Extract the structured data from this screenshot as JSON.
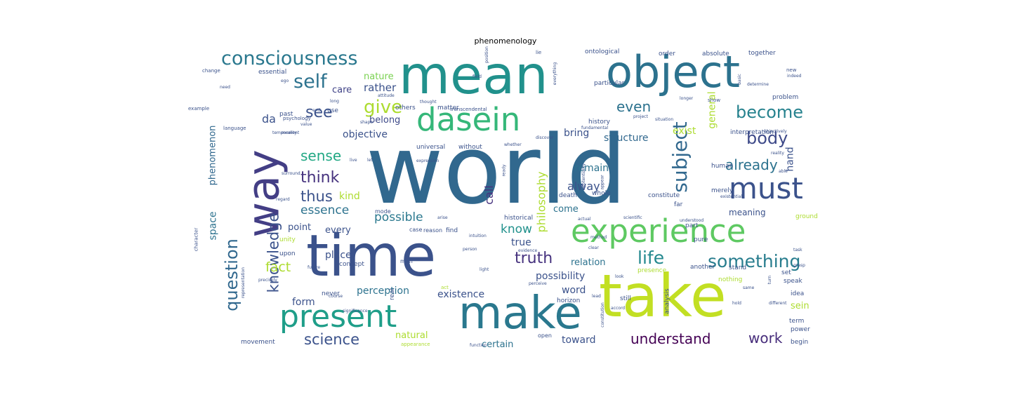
{
  "title": "phenomenology",
  "palette": [
    "#440154",
    "#472d7b",
    "#3b528b",
    "#2c728e",
    "#21918c",
    "#28ae80",
    "#5ec962",
    "#addc30",
    "#d5e21a"
  ],
  "words": [
    {
      "t": "world",
      "c": "#31688e"
    },
    {
      "t": "time",
      "c": "#3b528b"
    },
    {
      "t": "take",
      "c": "#c2df23"
    },
    {
      "t": "mean",
      "c": "#21918c"
    },
    {
      "t": "way",
      "c": "#433e85"
    },
    {
      "t": "object",
      "c": "#2c728e"
    },
    {
      "t": "make",
      "c": "#2a788e"
    },
    {
      "t": "present",
      "c": "#1f9e89"
    },
    {
      "t": "experience",
      "c": "#5ec962"
    },
    {
      "t": "dasein",
      "c": "#35b779"
    },
    {
      "t": "must",
      "c": "#3b528b"
    },
    {
      "t": "consciousness",
      "c": "#2a788e"
    },
    {
      "t": "give",
      "c": "#addc30"
    },
    {
      "t": "self",
      "c": "#2c728e"
    },
    {
      "t": "become",
      "c": "#26828e"
    },
    {
      "t": "subject",
      "c": "#31688e"
    },
    {
      "t": "body",
      "c": "#3e4a89"
    },
    {
      "t": "already",
      "c": "#2c728e"
    },
    {
      "t": "something",
      "c": "#287d8e"
    },
    {
      "t": "life",
      "c": "#23888e"
    },
    {
      "t": "understand",
      "c": "#440154"
    },
    {
      "t": "work",
      "c": "#472d7b"
    },
    {
      "t": "science",
      "c": "#3b528b"
    },
    {
      "t": "question",
      "c": "#31688e"
    },
    {
      "t": "knowledge",
      "c": "#3b528b"
    },
    {
      "t": "think",
      "c": "#46327e"
    },
    {
      "t": "thus",
      "c": "#3b528b"
    },
    {
      "t": "sense",
      "c": "#22a884"
    },
    {
      "t": "see",
      "c": "#3b528b"
    },
    {
      "t": "even",
      "c": "#2c728e"
    },
    {
      "t": "truth",
      "c": "#46327e"
    },
    {
      "t": "fact",
      "c": "#addc30"
    },
    {
      "t": "essence",
      "c": "#2c728e"
    },
    {
      "t": "possible",
      "c": "#2a788e"
    },
    {
      "t": "objective",
      "c": "#3b528b"
    },
    {
      "t": "rather",
      "c": "#3b528b"
    },
    {
      "t": "nature",
      "c": "#7ad151"
    },
    {
      "t": "care",
      "c": "#404387"
    },
    {
      "t": "belong",
      "c": "#3e4a89"
    },
    {
      "t": "da",
      "c": "#3b528b"
    },
    {
      "t": "philosophy",
      "c": "#addc30"
    },
    {
      "t": "structure",
      "c": "#31688e"
    },
    {
      "t": "exist",
      "c": "#addc30"
    },
    {
      "t": "general",
      "c": "#addc30"
    },
    {
      "t": "hand",
      "c": "#3b528b"
    },
    {
      "t": "remain",
      "c": "#2c728e"
    },
    {
      "t": "alway",
      "c": "#3b528b"
    },
    {
      "t": "bring",
      "c": "#3b528b"
    },
    {
      "t": "call",
      "c": "#46327e"
    },
    {
      "t": "kind",
      "c": "#addc30"
    },
    {
      "t": "know",
      "c": "#21918c"
    },
    {
      "t": "true",
      "c": "#3b528b"
    },
    {
      "t": "possibility",
      "c": "#3b528b"
    },
    {
      "t": "relation",
      "c": "#2c728e"
    },
    {
      "t": "word",
      "c": "#3b528b"
    },
    {
      "t": "existence",
      "c": "#3b528b"
    },
    {
      "t": "perception",
      "c": "#2c728e"
    },
    {
      "t": "form",
      "c": "#3b528b"
    },
    {
      "t": "natural",
      "c": "#addc30"
    },
    {
      "t": "certain",
      "c": "#2c728e"
    },
    {
      "t": "toward",
      "c": "#3b528b"
    },
    {
      "t": "sein",
      "c": "#addc30"
    },
    {
      "t": "phenomenon",
      "c": "#31688e"
    },
    {
      "t": "space",
      "c": "#2c728e"
    },
    {
      "t": "place",
      "c": "#3b528b"
    },
    {
      "t": "point",
      "c": "#3b528b"
    },
    {
      "t": "every",
      "c": "#3b528b"
    },
    {
      "t": "come",
      "c": "#2c728e"
    },
    {
      "t": "meaning",
      "c": "#3b528b"
    },
    {
      "t": "ontological",
      "c": "#3b528b"
    },
    {
      "t": "order",
      "c": "#3b528b"
    },
    {
      "t": "absolute",
      "c": "#3b528b"
    },
    {
      "t": "together",
      "c": "#3b528b"
    },
    {
      "t": "essential",
      "c": "#3b528b"
    },
    {
      "t": "particular",
      "c": "#3b528b"
    },
    {
      "t": "history",
      "c": "#3b528b"
    },
    {
      "t": "problem",
      "c": "#3b528b"
    },
    {
      "t": "interpretation",
      "c": "#3b528b"
    },
    {
      "t": "universal",
      "c": "#3b528b"
    },
    {
      "t": "without",
      "c": "#3b528b"
    },
    {
      "t": "others",
      "c": "#3b528b"
    },
    {
      "t": "matter",
      "c": "#3b528b"
    },
    {
      "t": "merely",
      "c": "#3b528b"
    },
    {
      "t": "constitute",
      "c": "#3b528b"
    },
    {
      "t": "far",
      "c": "#3b528b"
    },
    {
      "t": "part",
      "c": "#3b528b"
    },
    {
      "t": "pure",
      "c": "#3b528b"
    },
    {
      "t": "human",
      "c": "#3b528b"
    },
    {
      "t": "death",
      "c": "#3b528b"
    },
    {
      "t": "whole",
      "c": "#3b528b"
    },
    {
      "t": "ground",
      "c": "#addc30"
    },
    {
      "t": "historical",
      "c": "#3b528b"
    },
    {
      "t": "another",
      "c": "#3b528b"
    },
    {
      "t": "stand",
      "c": "#3b528b"
    },
    {
      "t": "presence",
      "c": "#addc30"
    },
    {
      "t": "speak",
      "c": "#3b528b"
    },
    {
      "t": "set",
      "c": "#3b528b"
    },
    {
      "t": "idea",
      "c": "#3b528b"
    },
    {
      "t": "term",
      "c": "#3b528b"
    },
    {
      "t": "power",
      "c": "#3b528b"
    },
    {
      "t": "begin",
      "c": "#3b528b"
    },
    {
      "t": "still",
      "c": "#3b528b"
    },
    {
      "t": "analysis",
      "c": "#3b528b"
    },
    {
      "t": "horizon",
      "c": "#3b528b"
    },
    {
      "t": "nothing",
      "c": "#addc30"
    },
    {
      "t": "unity",
      "c": "#addc30"
    },
    {
      "t": "upon",
      "c": "#3b528b"
    },
    {
      "t": "concept",
      "c": "#3b528b"
    },
    {
      "t": "real",
      "c": "#3b528b"
    },
    {
      "t": "never",
      "c": "#3b528b"
    },
    {
      "t": "movement",
      "c": "#3b528b"
    },
    {
      "t": "man",
      "c": "#3b528b"
    },
    {
      "t": "case",
      "c": "#3b528b"
    },
    {
      "t": "reason",
      "c": "#3b528b"
    },
    {
      "t": "find",
      "c": "#3b528b"
    },
    {
      "t": "mode",
      "c": "#3b528b"
    },
    {
      "t": "past",
      "c": "#3b528b"
    },
    {
      "t": "use",
      "c": "#3b528b"
    },
    {
      "t": "open",
      "c": "#3b528b"
    },
    {
      "t": "character",
      "c": "#3b528b"
    },
    {
      "t": "example",
      "c": "#3b528b"
    },
    {
      "t": "change",
      "c": "#3b528b"
    },
    {
      "t": "language",
      "c": "#3b528b"
    },
    {
      "t": "psychology",
      "c": "#3b528b"
    },
    {
      "t": "transcendental",
      "c": "#3b528b"
    },
    {
      "t": "thought",
      "c": "#3b528b"
    },
    {
      "t": "shape",
      "c": "#3b528b"
    },
    {
      "t": "situation",
      "c": "#3b528b"
    },
    {
      "t": "longer",
      "c": "#3b528b"
    },
    {
      "t": "show",
      "c": "#3b528b"
    },
    {
      "t": "determine",
      "c": "#3b528b"
    },
    {
      "t": "objectively",
      "c": "#3b528b"
    },
    {
      "t": "reality",
      "c": "#3b528b"
    },
    {
      "t": "existential",
      "c": "#3b528b"
    },
    {
      "t": "understood",
      "c": "#3b528b"
    },
    {
      "t": "scientific",
      "c": "#3b528b"
    },
    {
      "t": "method",
      "c": "#3b528b"
    },
    {
      "t": "evidence",
      "c": "#3b528b"
    },
    {
      "t": "clear",
      "c": "#3b528b"
    },
    {
      "t": "light",
      "c": "#3b528b"
    },
    {
      "t": "perceive",
      "c": "#3b528b"
    },
    {
      "t": "grasp",
      "c": "#3b528b"
    },
    {
      "t": "look",
      "c": "#3b528b"
    },
    {
      "t": "different",
      "c": "#3b528b"
    },
    {
      "t": "hold",
      "c": "#3b528b"
    },
    {
      "t": "accord",
      "c": "#3b528b"
    },
    {
      "t": "course",
      "c": "#3b528b"
    },
    {
      "t": "precisely",
      "c": "#3b528b"
    },
    {
      "t": "significance",
      "c": "#3b528b"
    },
    {
      "t": "representation",
      "c": "#3b528b"
    },
    {
      "t": "function",
      "c": "#3b528b"
    },
    {
      "t": "temporality",
      "c": "#3b528b"
    },
    {
      "t": "attitude",
      "c": "#3b528b"
    },
    {
      "t": "expression",
      "c": "#3b528b"
    },
    {
      "t": "potentiality",
      "c": "#3b528b"
    },
    {
      "t": "actual",
      "c": "#3b528b"
    },
    {
      "t": "appear",
      "c": "#3b528b"
    },
    {
      "t": "regard",
      "c": "#3b528b"
    },
    {
      "t": "arise",
      "c": "#3b528b"
    },
    {
      "t": "surround",
      "c": "#3b528b"
    },
    {
      "t": "future",
      "c": "#3b528b"
    },
    {
      "t": "able",
      "c": "#3b528b"
    },
    {
      "t": "new",
      "c": "#3b528b"
    },
    {
      "t": "need",
      "c": "#3b528b"
    },
    {
      "t": "indeed",
      "c": "#3b528b"
    },
    {
      "t": "basic",
      "c": "#3b528b"
    },
    {
      "t": "field",
      "c": "#3b528b"
    },
    {
      "t": "lie",
      "c": "#3b528b"
    },
    {
      "t": "position",
      "c": "#3b528b"
    },
    {
      "t": "everything",
      "c": "#3b528b"
    },
    {
      "t": "whether",
      "c": "#3b528b"
    },
    {
      "t": "discover",
      "c": "#3b528b"
    },
    {
      "t": "project",
      "c": "#3b528b"
    },
    {
      "t": "fundamental",
      "c": "#3b528b"
    },
    {
      "t": "end",
      "c": "#3b528b"
    },
    {
      "t": "long",
      "c": "#3b528b"
    },
    {
      "t": "ego",
      "c": "#3b528b"
    },
    {
      "t": "live",
      "c": "#3b528b"
    },
    {
      "t": "value",
      "c": "#3b528b"
    },
    {
      "t": "moment",
      "c": "#3b528b"
    },
    {
      "t": "let",
      "c": "#3b528b"
    },
    {
      "t": "constitution",
      "c": "#3b528b"
    },
    {
      "t": "appearance",
      "c": "#addc30"
    },
    {
      "t": "act",
      "c": "#addc30"
    },
    {
      "t": "person",
      "c": "#3b528b"
    },
    {
      "t": "task",
      "c": "#3b528b"
    },
    {
      "t": "same",
      "c": "#3b528b"
    },
    {
      "t": "turn",
      "c": "#3b528b"
    },
    {
      "t": "intuition",
      "c": "#3b528b"
    },
    {
      "t": "ready",
      "c": "#3b528b"
    },
    {
      "t": "lead",
      "c": "#3b528b"
    }
  ]
}
